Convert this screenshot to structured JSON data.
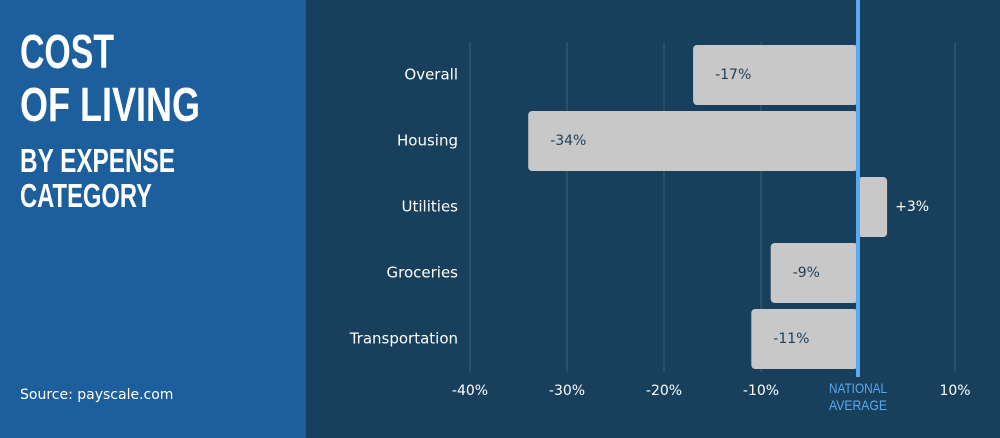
{
  "chart_data": {
    "type": "bar",
    "orientation": "horizontal",
    "title": "COST OF LIVING",
    "subtitle": "BY EXPENSE CATEGORY",
    "source": "Source: payscale.com",
    "categories": [
      "Overall",
      "Housing",
      "Utilities",
      "Groceries",
      "Transportation"
    ],
    "values": [
      -17,
      -34,
      3,
      -9,
      -11
    ],
    "value_labels": [
      "-17%",
      "-34%",
      "+3%",
      "-9%",
      "-11%"
    ],
    "color": "#c8c8c8",
    "reference_color": "#5aaaf0",
    "xlim": [
      -40,
      10
    ],
    "xticks": [
      {
        "value": -40,
        "label": "-40%"
      },
      {
        "value": -30,
        "label": "-30%"
      },
      {
        "value": -20,
        "label": "-20%"
      },
      {
        "value": -10,
        "label": "-10%"
      },
      {
        "value": 0,
        "label": "NATIONAL AVERAGE"
      },
      {
        "value": 10,
        "label": "10%"
      }
    ],
    "grid": true
  }
}
